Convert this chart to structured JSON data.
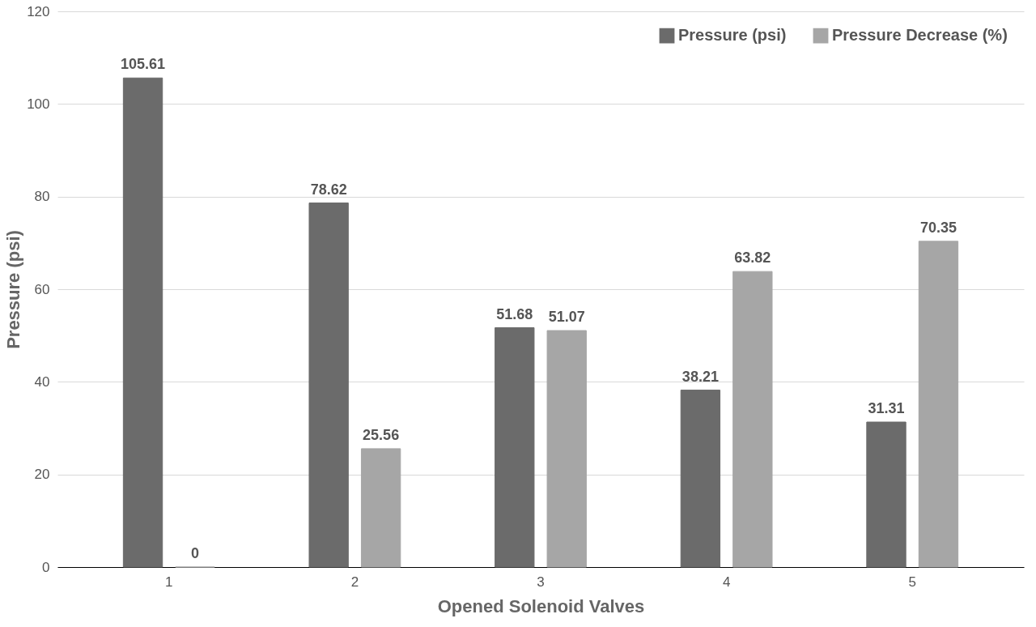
{
  "chart_data": {
    "type": "bar",
    "xlabel": "Opened Solenoid Valves",
    "ylabel": "Pressure (psi)",
    "categories": [
      "1",
      "2",
      "3",
      "4",
      "5"
    ],
    "series": [
      {
        "name": "Pressure (psi)",
        "color": "#6b6b6b",
        "values": [
          105.61,
          78.62,
          51.68,
          38.21,
          31.31
        ]
      },
      {
        "name": "Pressure Decrease (%)",
        "color": "#a6a6a6",
        "values": [
          0,
          25.56,
          51.07,
          63.82,
          70.35
        ]
      }
    ],
    "ylim": [
      0,
      120
    ],
    "yticks": [
      0,
      20,
      40,
      60,
      80,
      100,
      120
    ],
    "grid": "y",
    "legend": "top right",
    "data_labels": true
  }
}
